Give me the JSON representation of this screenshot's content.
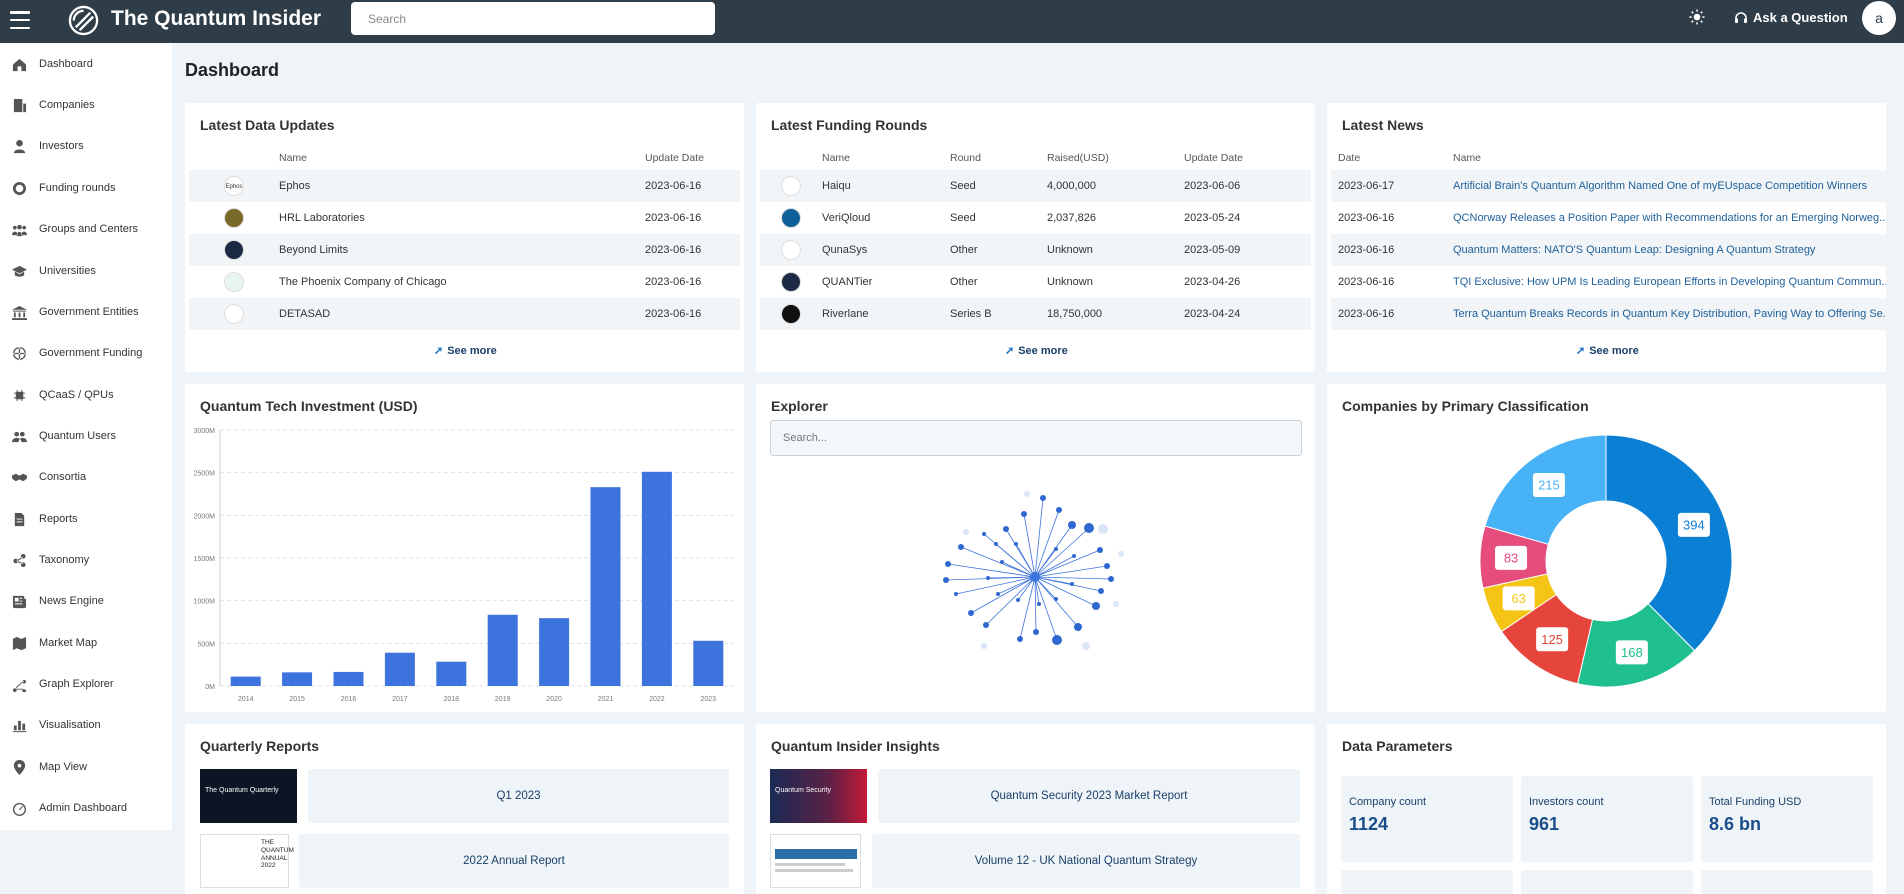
{
  "app": {
    "brand": "The Quantum Insider",
    "search_placeholder": "Search",
    "ask_label": "Ask a Question",
    "avatar_letter": "a"
  },
  "sidebar": {
    "items": [
      {
        "label": "Dashboard",
        "icon": "home-icon"
      },
      {
        "label": "Companies",
        "icon": "building-icon"
      },
      {
        "label": "Investors",
        "icon": "user-icon"
      },
      {
        "label": "Funding rounds",
        "icon": "coin-icon"
      },
      {
        "label": "Groups and Centers",
        "icon": "group-icon"
      },
      {
        "label": "Universities",
        "icon": "graduation-cap-icon"
      },
      {
        "label": "Government Entities",
        "icon": "bank-icon"
      },
      {
        "label": "Government Funding",
        "icon": "globe-icon"
      },
      {
        "label": "QCaaS / QPUs",
        "icon": "chip-icon"
      },
      {
        "label": "Quantum Users",
        "icon": "users-icon"
      },
      {
        "label": "Consortia",
        "icon": "handshake-icon"
      },
      {
        "label": "Reports",
        "icon": "document-icon"
      },
      {
        "label": "Taxonomy",
        "icon": "share-icon"
      },
      {
        "label": "News Engine",
        "icon": "newspaper-icon"
      },
      {
        "label": "Market Map",
        "icon": "map-edit-icon"
      },
      {
        "label": "Graph Explorer",
        "icon": "graph-icon"
      },
      {
        "label": "Visualisation",
        "icon": "bar-chart-icon"
      },
      {
        "label": "Map View",
        "icon": "map-pin-icon"
      },
      {
        "label": "Admin Dashboard",
        "icon": "speedometer-icon"
      }
    ]
  },
  "page_title": "Dashboard",
  "see_more": "See more",
  "latest_data": {
    "title": "Latest Data Updates",
    "headers": [
      "Name",
      "Update Date"
    ],
    "rows": [
      {
        "name": "Ephos",
        "date": "2023-06-16",
        "logo": "Ephos",
        "color": "#ffffff"
      },
      {
        "name": "HRL Laboratories",
        "date": "2023-06-16",
        "logo": "",
        "color": "#7a6a2a"
      },
      {
        "name": "Beyond Limits",
        "date": "2023-06-16",
        "logo": "",
        "color": "#1b2a44"
      },
      {
        "name": "The Phoenix Company of Chicago",
        "date": "2023-06-16",
        "logo": "",
        "color": "#e8f4ef"
      },
      {
        "name": "DETASAD",
        "date": "2023-06-16",
        "logo": "",
        "color": "#ffffff"
      }
    ]
  },
  "funding": {
    "title": "Latest Funding Rounds",
    "headers": [
      "Name",
      "Round",
      "Raised(USD)",
      "Update Date"
    ],
    "rows": [
      {
        "name": "Haiqu",
        "round": "Seed",
        "raised": "4,000,000",
        "date": "2023-06-06",
        "color": "#ffffff"
      },
      {
        "name": "VeriQloud",
        "round": "Seed",
        "raised": "2,037,826",
        "date": "2023-05-24",
        "color": "#0f5f99"
      },
      {
        "name": "QunaSys",
        "round": "Other",
        "raised": "Unknown",
        "date": "2023-05-09",
        "color": "#ffffff"
      },
      {
        "name": "QUANTier",
        "round": "Other",
        "raised": "Unknown",
        "date": "2023-04-26",
        "color": "#1c2a44"
      },
      {
        "name": "Riverlane",
        "round": "Series B",
        "raised": "18,750,000",
        "date": "2023-04-24",
        "color": "#111111"
      }
    ]
  },
  "news": {
    "title": "Latest News",
    "headers": [
      "Date",
      "Name"
    ],
    "rows": [
      {
        "date": "2023-06-17",
        "name": "Artificial Brain's Quantum Algorithm Named One of myEUspace Competition Winners"
      },
      {
        "date": "2023-06-16",
        "name": "QCNorway Releases a Position Paper with Recommendations for an Emerging Norweg..."
      },
      {
        "date": "2023-06-16",
        "name": "Quantum Matters: NATO'S Quantum Leap: Designing A Quantum Strategy"
      },
      {
        "date": "2023-06-16",
        "name": "TQI Exclusive: How UPM Is Leading European Efforts in Developing Quantum Commun..."
      },
      {
        "date": "2023-06-16",
        "name": "Terra Quantum Breaks Records in Quantum Key Distribution, Paving Way to Offering Se..."
      }
    ]
  },
  "investment_chart_title": "Quantum Tech Investment (USD)",
  "chart_data": {
    "type": "bar",
    "title": "Quantum Tech Investment (USD)",
    "categories": [
      "2014",
      "2015",
      "2016",
      "2017",
      "2018",
      "2019",
      "2020",
      "2021",
      "2022",
      "2023"
    ],
    "values": [
      110,
      160,
      165,
      390,
      285,
      835,
      795,
      2330,
      2510,
      530
    ],
    "yticks": [
      "0M",
      "500M",
      "1000M",
      "1500M",
      "2000M",
      "2500M",
      "3000M"
    ],
    "ylim": [
      0,
      3000
    ],
    "grid": true,
    "color": "#3d73dd"
  },
  "explorer": {
    "title": "Explorer",
    "search_placeholder": "Search..."
  },
  "classification": {
    "title": "Companies by Primary Classification",
    "slices": [
      {
        "value": 394,
        "color": "#0a7fd4"
      },
      {
        "value": 168,
        "color": "#1fbf8f"
      },
      {
        "value": 125,
        "color": "#e5453a"
      },
      {
        "value": 63,
        "color": "#f4c515"
      },
      {
        "value": 83,
        "color": "#e64c7c"
      },
      {
        "value": 215,
        "color": "#47b2f5"
      }
    ]
  },
  "quarterly": {
    "title": "Quarterly Reports",
    "items": [
      {
        "label": "Q1 2023",
        "thumb_text": "The Quantum Quarterly"
      },
      {
        "label": "2022 Annual Report",
        "thumb_text": "THE QUANTUM ANNUAL 2022"
      }
    ]
  },
  "insights": {
    "title": "Quantum Insider Insights",
    "items": [
      {
        "label": "Quantum Security 2023 Market Report",
        "thumb_text": "Quantum Security"
      },
      {
        "label": "Volume 12 - UK National Quantum Strategy",
        "thumb_text": ""
      }
    ]
  },
  "params": {
    "title": "Data Parameters",
    "items": [
      {
        "label": "Company count",
        "value": "1124"
      },
      {
        "label": "Investors count",
        "value": "961"
      },
      {
        "label": "Total Funding USD",
        "value": "8.6 bn"
      }
    ]
  }
}
